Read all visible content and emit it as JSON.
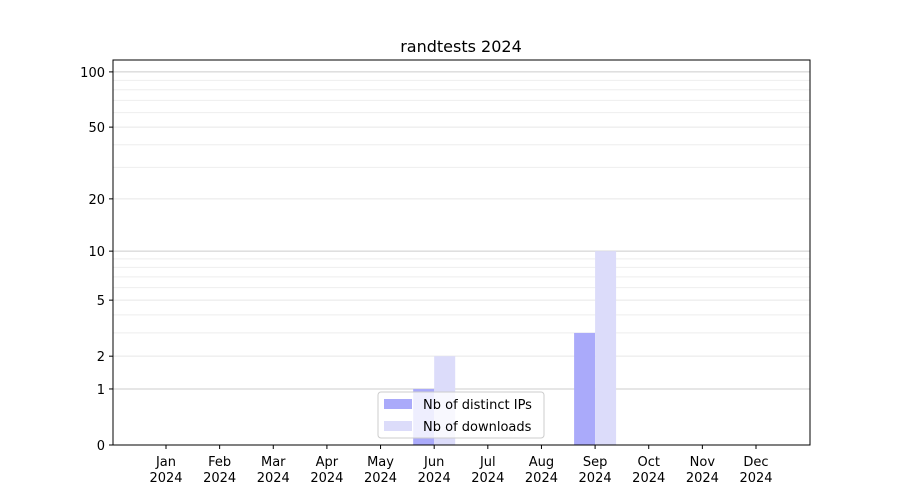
{
  "chart_data": {
    "type": "bar",
    "title": "randtests 2024",
    "xlabel": "",
    "ylabel": "",
    "yscale": "log(1+y)",
    "ylim": [
      0,
      116
    ],
    "yticks": [
      0,
      1,
      2,
      5,
      10,
      20,
      50,
      100
    ],
    "grid": true,
    "legend_position": "lower-center",
    "categories": [
      "Jan\n2024",
      "Feb\n2024",
      "Mar\n2024",
      "Apr\n2024",
      "May\n2024",
      "Jun\n2024",
      "Jul\n2024",
      "Aug\n2024",
      "Sep\n2024",
      "Oct\n2024",
      "Nov\n2024",
      "Dec\n2024"
    ],
    "series": [
      {
        "name": "Nb of distinct IPs",
        "color": "#aaaafa",
        "values": [
          0,
          0,
          0,
          0,
          0,
          1,
          0,
          0,
          3,
          0,
          0,
          0
        ]
      },
      {
        "name": "Nb of downloads",
        "color": "#dcdcfa",
        "values": [
          0,
          0,
          0,
          0,
          0,
          2,
          0,
          0,
          10,
          0,
          0,
          0
        ]
      }
    ]
  }
}
